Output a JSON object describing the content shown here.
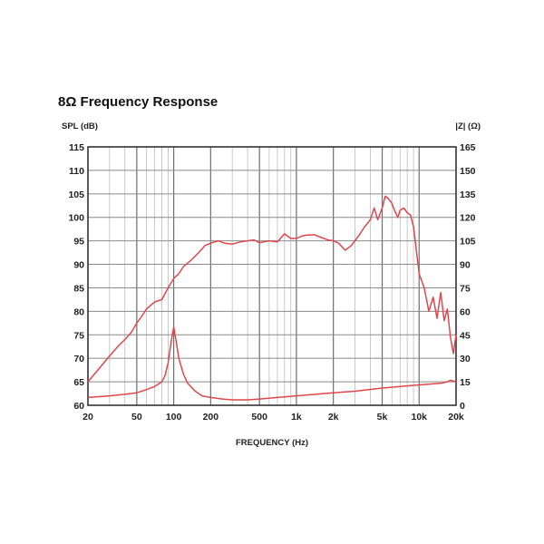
{
  "title": "8Ω Frequency Response",
  "chart_data": {
    "type": "line",
    "title": "8Ω Frequency Response",
    "xlabel": "FREQUENCY (Hz)",
    "ylabel_left": "SPL (dB)",
    "ylabel_right": "|Z| (Ω)",
    "x_scale": "log",
    "xlim": [
      20,
      20000
    ],
    "ylim": [
      60,
      115
    ],
    "y2lim": [
      0,
      165
    ],
    "grid": true,
    "x_ticks": [
      {
        "value": 20,
        "label": "20"
      },
      {
        "value": 50,
        "label": "50"
      },
      {
        "value": 100,
        "label": "100"
      },
      {
        "value": 200,
        "label": "200"
      },
      {
        "value": 500,
        "label": "500"
      },
      {
        "value": 1000,
        "label": "1k"
      },
      {
        "value": 2000,
        "label": "2k"
      },
      {
        "value": 5000,
        "label": "5k"
      },
      {
        "value": 10000,
        "label": "10k"
      },
      {
        "value": 20000,
        "label": "20k"
      }
    ],
    "y_ticks": [
      "115",
      "110",
      "105",
      "100",
      "95",
      "90",
      "85",
      "80",
      "75",
      "70",
      "65",
      "60"
    ],
    "y2_ticks": [
      "165",
      "150",
      "135",
      "120",
      "105",
      "90",
      "75",
      "60",
      "45",
      "30",
      "15",
      "0"
    ],
    "line_color": "#e0474c",
    "series": [
      {
        "axis": "left",
        "x": [
          20,
          25,
          30,
          35,
          40,
          45,
          50,
          55,
          60,
          70,
          80,
          90,
          100,
          110,
          120,
          140,
          160,
          180,
          200,
          230,
          260,
          300,
          350,
          400,
          450,
          500,
          600,
          700,
          800,
          900,
          1000,
          1100,
          1200,
          1400,
          1600,
          1800,
          2000,
          2200,
          2500,
          2800,
          3000,
          3300,
          3600,
          4000,
          4300,
          4600,
          5000,
          5300,
          5600,
          6000,
          6300,
          6700,
          7000,
          7500,
          8000,
          8500,
          9000,
          10000,
          11000,
          12000,
          13000,
          14000,
          15000,
          16000,
          17000,
          18000,
          19000,
          20000
        ],
        "y": [
          65,
          68,
          70.5,
          72.5,
          74,
          75.5,
          77.5,
          79,
          80.5,
          82,
          82.5,
          85,
          87,
          88,
          89.5,
          91,
          92.5,
          94,
          94.5,
          95,
          94.5,
          94.3,
          94.8,
          95,
          95.2,
          94.6,
          95,
          94.8,
          96.5,
          95.5,
          95.5,
          96,
          96.2,
          96.3,
          95.7,
          95.2,
          95,
          94.5,
          93,
          94,
          95,
          96.5,
          98,
          99.5,
          102,
          99.5,
          102,
          104.5,
          104,
          103,
          101.5,
          100,
          101.5,
          102,
          101,
          100.5,
          98,
          88,
          85,
          80,
          83,
          78.5,
          84,
          78,
          80.5,
          74.5,
          71,
          75
        ]
      },
      {
        "axis": "right",
        "x": [
          20,
          30,
          40,
          50,
          60,
          70,
          80,
          85,
          90,
          95,
          100,
          105,
          110,
          120,
          130,
          150,
          170,
          200,
          250,
          300,
          400,
          500,
          700,
          1000,
          2000,
          3000,
          5000,
          10000,
          15000,
          17000,
          18000,
          20000
        ],
        "y": [
          5,
          6,
          7,
          8,
          10,
          12,
          15,
          19,
          27,
          40,
          50,
          40,
          30,
          20,
          14,
          9,
          6,
          5,
          4,
          3.5,
          3.5,
          4,
          5,
          6,
          8,
          9,
          11,
          13,
          14,
          15,
          16,
          15
        ]
      }
    ]
  }
}
